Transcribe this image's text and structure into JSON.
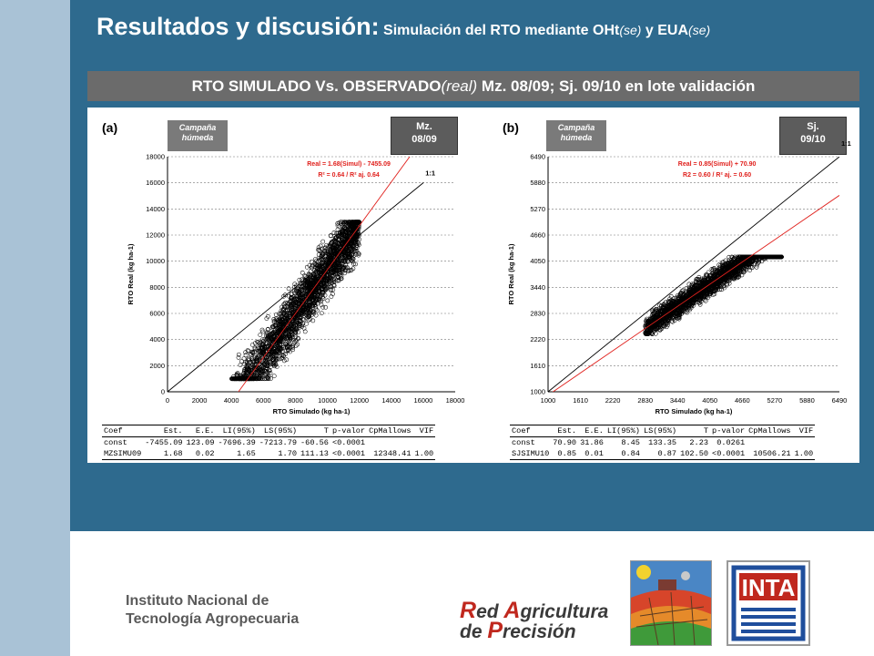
{
  "header": {
    "title_main": "Resultados y discusión:",
    "title_sub_a": "Simulación del RTO mediante OHt",
    "title_sub_se1": "(se)",
    "title_sub_b": " y EUA",
    "title_sub_se2": "(se)"
  },
  "section": {
    "bar_a": "RTO SIMULADO Vs. OBSERVADO",
    "bar_real": "(real)",
    "bar_b": " Mz. 08/09; Sj. 09/10 en lote validación"
  },
  "chart_data": [
    {
      "type": "scatter",
      "panel_label": "(a)",
      "season_tag": [
        "Campaña",
        "húmeda"
      ],
      "crop_tag": [
        "Mz.",
        "08/09"
      ],
      "xlabel": "RTO Simulado (kg ha-1)",
      "ylabel": "RTO Real (kg ha-1)",
      "xlim": [
        0,
        18000
      ],
      "ylim": [
        0,
        18000
      ],
      "xticks": [
        0,
        2000,
        4000,
        6000,
        8000,
        10000,
        12000,
        14000,
        16000,
        18000
      ],
      "yticks": [
        0,
        2000,
        4000,
        6000,
        8000,
        10000,
        12000,
        14000,
        16000,
        18000
      ],
      "grid": "horizontal dashed",
      "reference_line": {
        "label": "1:1",
        "slope": 1,
        "intercept": 0,
        "color": "#000000"
      },
      "fit_line": {
        "slope": 1.68,
        "intercept": -7455.09,
        "color": "#e0201c"
      },
      "equation": "Real = 1.68(Simul) - 7455.09",
      "r2_text": "R² = 0.64  /  R² aj.  0.64",
      "point_cloud": {
        "x_range": [
          4000,
          12000
        ],
        "y_range": [
          1000,
          13000
        ],
        "note_points": "dense scatter of open circles"
      },
      "stats": {
        "columns": [
          "Coef",
          "Est.",
          "E.E.",
          "LI(95%)",
          "LS(95%)",
          "T",
          "p-valor",
          "CpMallows",
          "VIF"
        ],
        "rows": [
          [
            "const",
            "-7455.09",
            "123.09",
            "-7696.39",
            "-7213.79",
            "-60.56",
            "<0.0001",
            "",
            ""
          ],
          [
            "MZSIMU09",
            "1.68",
            "0.02",
            "1.65",
            "1.70",
            "111.13",
            "<0.0001",
            "12348.41",
            "1.00"
          ]
        ]
      }
    },
    {
      "type": "scatter",
      "panel_label": "(b)",
      "season_tag": [
        "Campaña",
        "húmeda"
      ],
      "crop_tag": [
        "Sj.",
        "09/10"
      ],
      "xlabel": "RTO Simulado (kg ha-1)",
      "ylabel": "RTO Real (kg ha-1)",
      "xlim": [
        1000,
        6490
      ],
      "ylim": [
        1000,
        6490
      ],
      "xticks": [
        1000,
        1610,
        2220,
        2830,
        3440,
        4050,
        4660,
        5270,
        5880,
        6490
      ],
      "yticks": [
        1000,
        1610,
        2220,
        2830,
        3440,
        4050,
        4660,
        5270,
        5880,
        6490
      ],
      "grid": "horizontal dashed",
      "reference_line": {
        "label": "1:1",
        "slope": 1,
        "intercept": 0,
        "color": "#000000"
      },
      "fit_line": {
        "slope": 0.85,
        "intercept": 70.9,
        "color": "#e0201c"
      },
      "equation": "Real = 0.85(Simul) + 70.90",
      "r2_text": "R2 = 0.60  /  R² aj. = 0.60",
      "point_cloud": {
        "x_range": [
          2830,
          5400
        ],
        "y_range": [
          2350,
          4150
        ],
        "note_points": "dense scatter of open circles"
      },
      "stats": {
        "columns": [
          "Coef",
          "Est.",
          "E.E.",
          "LI(95%)",
          "LS(95%)",
          "T",
          "p-valor",
          "CpMallows",
          "VIF"
        ],
        "rows": [
          [
            "const",
            "70.90",
            "31.86",
            "8.45",
            "133.35",
            "2.23",
            "0.0261",
            "",
            ""
          ],
          [
            "SJSIMU10",
            "0.85",
            "0.01",
            "0.84",
            "0.87",
            "102.50",
            "<0.0001",
            "10506.21",
            "1.00"
          ]
        ]
      }
    }
  ],
  "footer": {
    "institute_line1": "Instituto Nacional de",
    "institute_line2": "Tecnología Agropecuaria",
    "rap_cap1": "R",
    "rap_rest1": "ed ",
    "rap_cap2": "A",
    "rap_rest2": "gricultura",
    "rap_rest3": "de ",
    "rap_cap3": "P",
    "rap_rest4": "recisión",
    "inta_logo_text": "INTA"
  },
  "colors": {
    "background": "#2e6a8e",
    "strip": "#a9c2d6",
    "section_bar": "#6b6b6b",
    "fit_line": "#e0201c",
    "brand_red": "#c0281e",
    "inta_blue": "#1f4e9c"
  }
}
